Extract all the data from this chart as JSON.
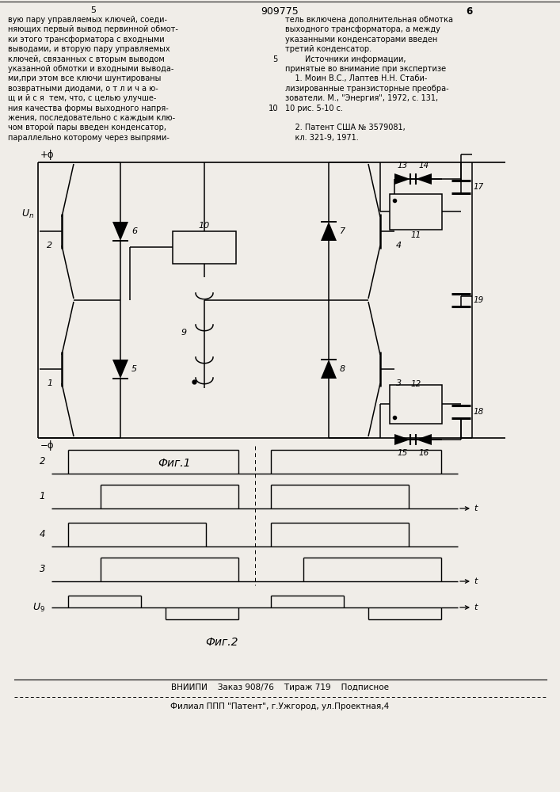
{
  "bg_color": "#f0ede8",
  "page_width": 7.07,
  "page_height": 10.0,
  "patent_number": "909775",
  "page_number_left": "5",
  "page_number_right": "6",
  "left_lines": [
    "вую пару управляемых ключей, соеди-",
    "няющих первый вывод первинной обмот-",
    "ки этого трансформатора с входными",
    "выводами, и вторую пару управляемых",
    "ключей, связанных с вторым выводом",
    "указанной обмотки и входными вывода-",
    "ми,при этом все ключи шунтированы",
    "возвратными диодами, о т л и ч а ю-",
    "щ и й с я  тем, что, с целью улучше-",
    "ния качества формы выходного напря-",
    "жения, последовательно с каждым клю-",
    "чом второй пары введен конденсатор,",
    "параллельно которому через выпрями-"
  ],
  "right_lines": [
    "тель включена дополнительная обмотка",
    "выходного трансформатора, а между",
    "указанными конденсаторами введен",
    "третий конденсатор.",
    "        Источники информации,",
    "принятые во внимание при экспертизе",
    "    1. Моин В.С., Лаптев Н.Н. Стаби-",
    "лизированные транзисторные преобра-",
    "зователи. М., \"Энергия\", 1972, с. 131,",
    "10 рис. 5-10 с.",
    "",
    "    2. Патент США № 3579081,",
    "    кл. 321-9, 1971."
  ],
  "fig1_label": "Фиг.1",
  "fig2_label": "Фиг.2",
  "bottom_line1": "ВНИИПИ    Заказ 908/76    Тираж 719    Подписное",
  "bottom_line2": "Филиал ППП \"Патент\", г.Ужгород, ул.Проектная,4"
}
